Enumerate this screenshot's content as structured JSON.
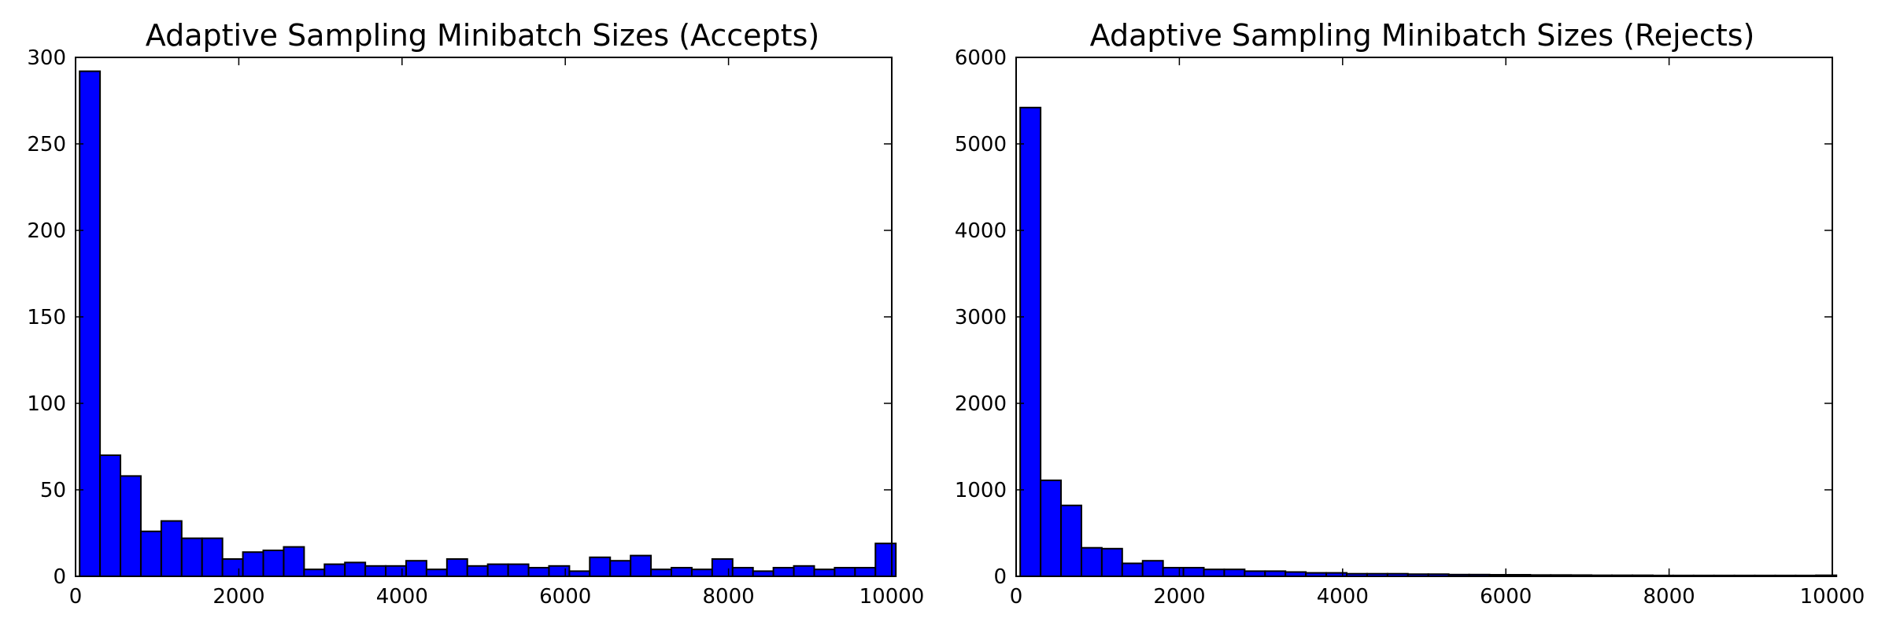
{
  "chart_data": [
    {
      "type": "bar",
      "title": "Adaptive Sampling Minibatch Sizes (Accepts)",
      "xlabel": "",
      "ylabel": "",
      "xlim": [
        0,
        10000
      ],
      "ylim": [
        0,
        300
      ],
      "xticks": [
        0,
        2000,
        4000,
        6000,
        8000,
        10000
      ],
      "yticks": [
        0,
        50,
        100,
        150,
        200,
        250,
        300
      ],
      "bin_edges_start": 50,
      "bin_width": 250,
      "values": [
        292,
        70,
        58,
        26,
        32,
        22,
        22,
        10,
        14,
        15,
        17,
        4,
        7,
        8,
        6,
        6,
        9,
        4,
        10,
        6,
        7,
        7,
        5,
        6,
        3,
        11,
        9,
        12,
        4,
        5,
        4,
        10,
        5,
        3,
        5,
        6,
        4,
        5,
        5,
        19
      ],
      "color": "#0000ff",
      "edgecolor": "#000000",
      "grid": false
    },
    {
      "type": "bar",
      "title": "Adaptive Sampling Minibatch Sizes (Rejects)",
      "xlabel": "",
      "ylabel": "",
      "xlim": [
        0,
        10000
      ],
      "ylim": [
        0,
        6000
      ],
      "xticks": [
        0,
        2000,
        4000,
        6000,
        8000,
        10000
      ],
      "yticks": [
        0,
        1000,
        2000,
        3000,
        4000,
        5000,
        6000
      ],
      "bin_edges_start": 50,
      "bin_width": 250,
      "values": [
        5420,
        1110,
        820,
        330,
        320,
        150,
        180,
        100,
        100,
        80,
        80,
        60,
        60,
        50,
        40,
        40,
        30,
        30,
        30,
        25,
        25,
        20,
        20,
        18,
        18,
        15,
        15,
        14,
        12,
        12,
        12,
        10,
        10,
        10,
        10,
        10,
        10,
        10,
        10,
        12
      ],
      "color": "#0000ff",
      "edgecolor": "#000000",
      "grid": false
    }
  ]
}
